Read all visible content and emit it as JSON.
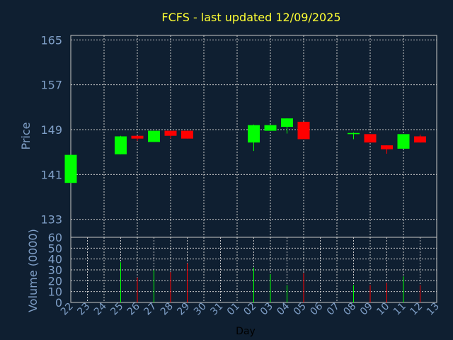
{
  "chart_data": {
    "type": "candlestick",
    "title": "FCFS - last updated 12/09/2025",
    "xlabel": "Day",
    "price_panel": {
      "ylabel": "Price",
      "yticks": [
        133,
        141,
        149,
        157,
        165
      ],
      "ylim": [
        129.8,
        165.8
      ]
    },
    "volume_panel": {
      "ylabel": "Volume (0000)",
      "yticks": [
        0,
        10,
        20,
        30,
        40,
        50,
        60
      ],
      "ylim": [
        0,
        60
      ]
    },
    "days": [
      "22",
      "23",
      "24",
      "25",
      "26",
      "27",
      "28",
      "29",
      "30",
      "31",
      "01",
      "02",
      "03",
      "04",
      "05",
      "06",
      "07",
      "08",
      "09",
      "10",
      "11",
      "12",
      "13"
    ],
    "candles": [
      {
        "day": "22",
        "open": 139.5,
        "close": 144.5,
        "high": 144.5,
        "low": 139.5,
        "volume": 0,
        "dir": "up"
      },
      {
        "day": "25",
        "open": 144.6,
        "close": 147.8,
        "high": 147.9,
        "low": 144.6,
        "volume": 37,
        "dir": "up"
      },
      {
        "day": "26",
        "open": 147.9,
        "close": 147.4,
        "high": 147.9,
        "low": 147.0,
        "volume": 23,
        "dir": "down"
      },
      {
        "day": "27",
        "open": 146.8,
        "close": 148.8,
        "high": 148.8,
        "low": 146.8,
        "volume": 30,
        "dir": "up"
      },
      {
        "day": "28",
        "open": 148.8,
        "close": 147.9,
        "high": 148.8,
        "low": 147.4,
        "volume": 28,
        "dir": "down"
      },
      {
        "day": "29",
        "open": 148.8,
        "close": 147.4,
        "high": 148.8,
        "low": 147.4,
        "volume": 36,
        "dir": "down"
      },
      {
        "day": "02",
        "open": 146.7,
        "close": 149.8,
        "high": 149.9,
        "low": 145.2,
        "volume": 32,
        "dir": "up"
      },
      {
        "day": "03",
        "open": 148.8,
        "close": 149.8,
        "high": 149.8,
        "low": 148.8,
        "volume": 26,
        "dir": "up"
      },
      {
        "day": "04",
        "open": 149.5,
        "close": 151.0,
        "high": 151.0,
        "low": 148.3,
        "volume": 16,
        "dir": "up"
      },
      {
        "day": "05",
        "open": 150.4,
        "close": 147.3,
        "high": 150.4,
        "low": 147.3,
        "volume": 27,
        "dir": "down"
      },
      {
        "day": "08",
        "open": 148.2,
        "close": 148.4,
        "high": 148.5,
        "low": 147.3,
        "volume": 16,
        "dir": "up"
      },
      {
        "day": "09",
        "open": 148.2,
        "close": 146.7,
        "high": 148.2,
        "low": 146.7,
        "volume": 16,
        "dir": "down"
      },
      {
        "day": "10",
        "open": 146.2,
        "close": 145.5,
        "high": 146.2,
        "low": 144.7,
        "volume": 18,
        "dir": "down"
      },
      {
        "day": "11",
        "open": 145.6,
        "close": 148.2,
        "high": 148.2,
        "low": 145.6,
        "volume": 24,
        "dir": "up"
      },
      {
        "day": "12",
        "open": 147.8,
        "close": 146.7,
        "high": 148.1,
        "low": 146.7,
        "volume": 16,
        "dir": "down"
      }
    ],
    "grid": true,
    "colors": {
      "background": "#0f1f31",
      "up": "#00ff00",
      "down": "#ff0000",
      "title": "#ffff33",
      "labels": "#7f9fc7",
      "grid": "#c8c8c8"
    }
  }
}
